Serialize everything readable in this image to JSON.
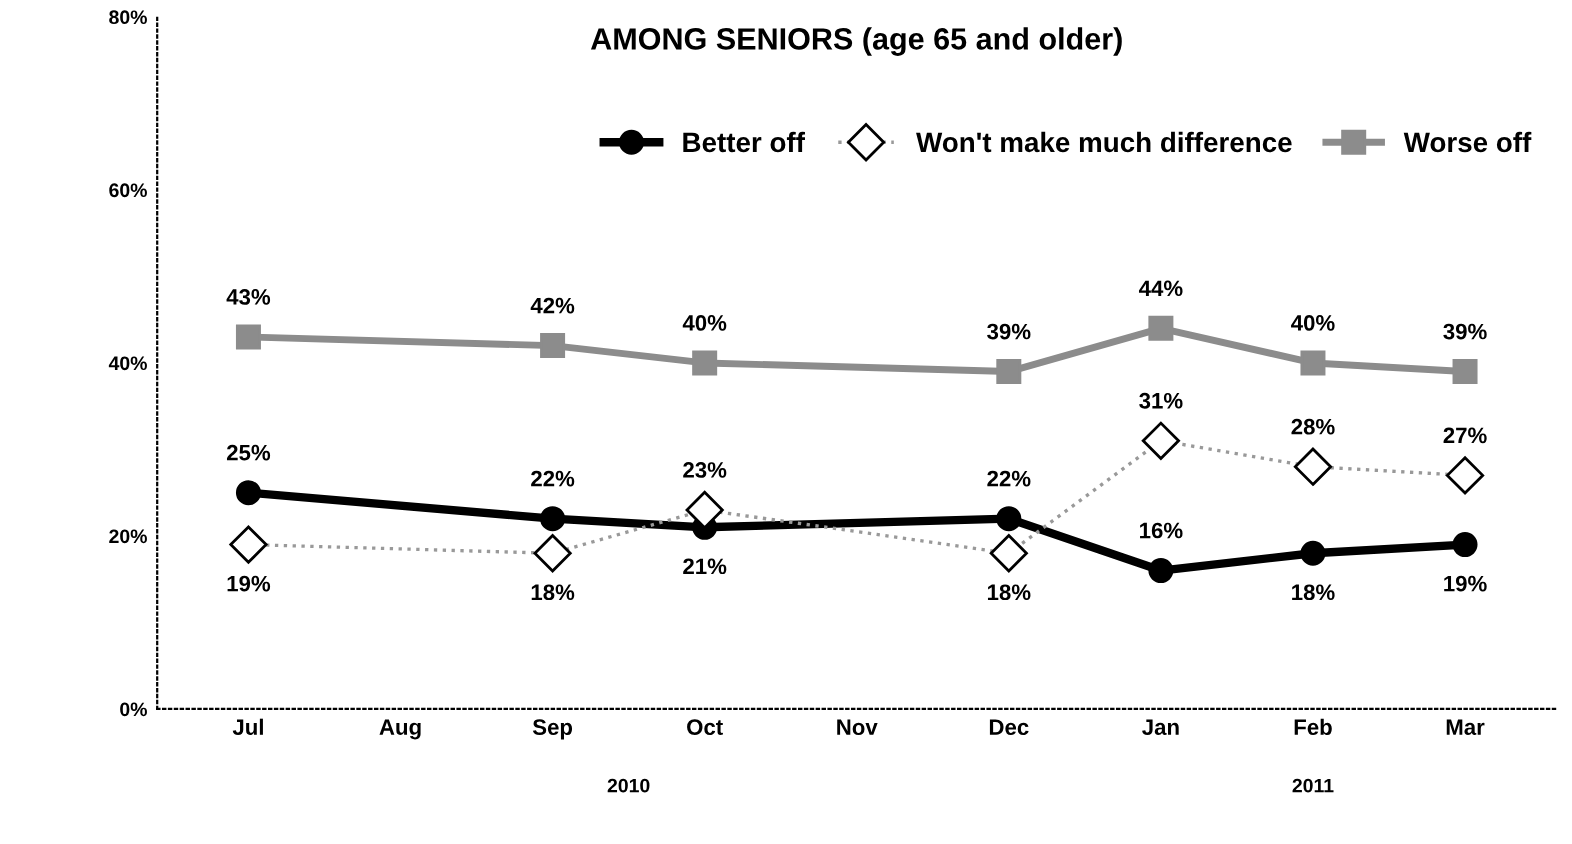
{
  "chart_data": {
    "type": "line",
    "title": "AMONG SENIORS (age 65 and older)",
    "categories": [
      "Jul",
      "Aug",
      "Sep",
      "Oct",
      "Nov",
      "Dec",
      "Jan",
      "Feb",
      "Mar"
    ],
    "series": [
      {
        "name": "Better off",
        "color": "#000000",
        "marker": "circle",
        "line_style": "solid",
        "values": [
          25,
          null,
          22,
          21,
          null,
          22,
          16,
          18,
          19
        ],
        "value_labels": [
          "25%",
          null,
          "22%",
          "21%",
          null,
          "22%",
          "16%",
          "18%",
          "19%"
        ]
      },
      {
        "name": "Won't make much difference",
        "color": "#999999",
        "marker": "diamond",
        "line_style": "dotted",
        "values": [
          19,
          null,
          18,
          23,
          null,
          18,
          31,
          28,
          27
        ],
        "value_labels": [
          "19%",
          null,
          "18%",
          "23%",
          null,
          "18%",
          "31%",
          "28%",
          "27%"
        ]
      },
      {
        "name": "Worse off",
        "color": "#8c8c8c",
        "marker": "square",
        "line_style": "solid",
        "values": [
          43,
          null,
          42,
          40,
          null,
          39,
          44,
          40,
          39
        ],
        "value_labels": [
          "43%",
          null,
          "42%",
          "40%",
          null,
          "39%",
          "44%",
          "40%",
          "39%"
        ]
      }
    ],
    "ylim": [
      0,
      80
    ],
    "yticks": [
      {
        "value": 0,
        "label": "0%"
      },
      {
        "value": 20,
        "label": "20%"
      },
      {
        "value": 40,
        "label": "40%"
      },
      {
        "value": 60,
        "label": "60%"
      },
      {
        "value": 80,
        "label": "80%"
      }
    ],
    "legend": "top right",
    "grid": false,
    "annotations": [
      "2010",
      "2011"
    ]
  }
}
